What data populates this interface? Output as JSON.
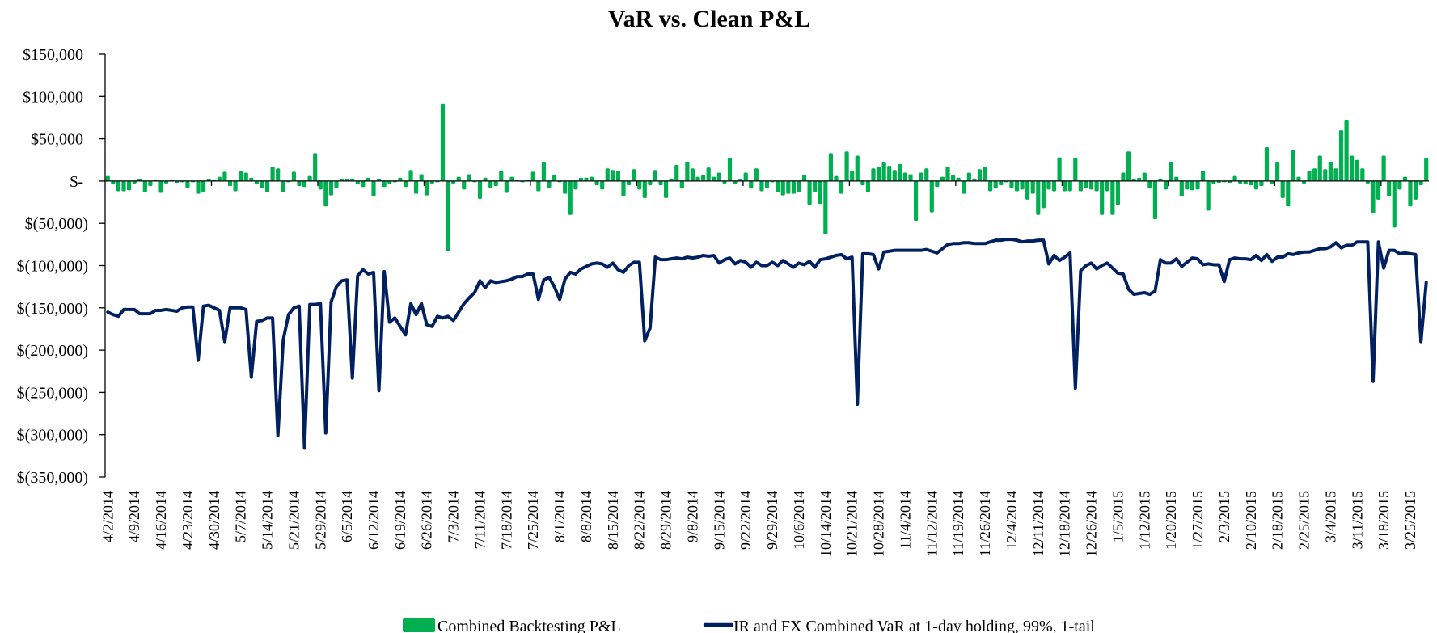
{
  "chart_data": {
    "type": "bar+line",
    "title": "VaR vs. Clean P&L",
    "xlabel": "",
    "ylabel": "",
    "units": "USD",
    "ylim": [
      -350000,
      150000
    ],
    "y_ticks": [
      150000,
      100000,
      50000,
      0,
      -50000,
      -100000,
      -150000,
      -200000,
      -250000,
      -300000,
      -350000
    ],
    "y_tick_labels": [
      "$150,000",
      "$100,000",
      "$50,000",
      "$-",
      "$(50,000)",
      "$(100,000)",
      "$(150,000)",
      "$(200,000)",
      "$(250,000)",
      "$(300,000)",
      "$(350,000)"
    ],
    "x_tick_label_every": 5,
    "x_tick_labels": [
      "4/2/2014",
      "4/9/2014",
      "4/16/2014",
      "4/23/2014",
      "4/30/2014",
      "5/7/2014",
      "5/14/2014",
      "5/21/2014",
      "5/29/2014",
      "6/5/2014",
      "6/12/2014",
      "6/19/2014",
      "6/26/2014",
      "7/3/2014",
      "7/11/2014",
      "7/18/2014",
      "7/25/2014",
      "8/1/2014",
      "8/8/2014",
      "8/15/2014",
      "8/22/2014",
      "8/29/2014",
      "9/8/2014",
      "9/15/2014",
      "9/22/2014",
      "9/29/2014",
      "10/6/2014",
      "10/14/2014",
      "10/21/2014",
      "10/28/2014",
      "11/4/2014",
      "11/12/2014",
      "11/19/2014",
      "11/26/2014",
      "12/4/2014",
      "12/11/2014",
      "12/18/2014",
      "12/26/2014",
      "1/5/2015",
      "1/12/2015",
      "1/20/2015",
      "1/27/2015",
      "2/3/2015",
      "2/10/2015",
      "2/18/2015",
      "2/25/2015",
      "3/4/2015",
      "3/11/2015",
      "3/18/2015",
      "3/25/2015"
    ],
    "grid": false,
    "legend_position": "bottom",
    "series": [
      {
        "name": "Combined Backtesting P&L",
        "type": "bar",
        "color": "#00B050",
        "values": [
          6000,
          -4000,
          -12000,
          -12000,
          -11000,
          -3000,
          2000,
          -13000,
          -6000,
          1000,
          -14000,
          -3000,
          1000,
          -2000,
          -1000,
          -8000,
          -1000,
          -15000,
          -13000,
          2000,
          1000,
          5000,
          11000,
          -6000,
          -12000,
          12000,
          10000,
          4000,
          -4000,
          -8000,
          -13000,
          17000,
          15000,
          -13000,
          0,
          11000,
          -6000,
          -7000,
          6000,
          33000,
          -10000,
          -30000,
          -17000,
          -8000,
          2000,
          2000,
          3000,
          -4000,
          -7000,
          4000,
          -18000,
          2000,
          -7000,
          -3000,
          0,
          4000,
          -7000,
          13000,
          -15000,
          8000,
          -17000,
          -3000,
          0,
          91000,
          -83000,
          -3000,
          5000,
          -10000,
          8000,
          -1000,
          -21000,
          4000,
          -8000,
          -6000,
          12000,
          -14000,
          5000,
          1000,
          0,
          1000,
          11000,
          -12000,
          22000,
          -8000,
          7000,
          -1000,
          -15000,
          -40000,
          -10000,
          4000,
          4000,
          5000,
          -5000,
          -10000,
          15000,
          13000,
          12000,
          -18000,
          -5000,
          14000,
          -10000,
          -20000,
          -5000,
          13000,
          -5000,
          -20000,
          3000,
          19000,
          -9000,
          23000,
          15000,
          5000,
          7000,
          16000,
          5000,
          10000,
          -3000,
          27000,
          -3000,
          2000,
          10000,
          -9000,
          15000,
          -12000,
          -8000,
          0,
          -13000,
          -17000,
          -15000,
          -15000,
          -13000,
          7000,
          -28000,
          -13000,
          -27000,
          -63000,
          33000,
          6000,
          -15000,
          35000,
          12000,
          30000,
          -5000,
          -13000,
          15000,
          17000,
          22000,
          18000,
          13000,
          20000,
          10000,
          8000,
          -47000,
          10000,
          15000,
          -37000,
          -7000,
          5000,
          17000,
          7000,
          4000,
          -15000,
          10000,
          3000,
          14000,
          17000,
          -12000,
          -9000,
          -5000,
          0,
          -8000,
          -12000,
          -10000,
          -22000,
          -15000,
          -40000,
          -32000,
          -10000,
          -12000,
          28000,
          -12000,
          -12000,
          27000,
          -12000,
          -8000,
          -10000,
          -12000,
          -40000,
          -12000,
          -40000,
          -28000,
          10000,
          35000,
          2000,
          4000,
          10000,
          -8000,
          -45000,
          3000,
          -10000,
          22000,
          5000,
          -18000,
          -10000,
          -11000,
          -10000,
          12000,
          -35000,
          -3000,
          -2000,
          0,
          -2000,
          6000,
          -3000,
          -4000,
          -5000,
          -10000,
          -6000,
          40000,
          -3000,
          22000,
          -20000,
          -30000,
          37000,
          5000,
          -3000,
          12000,
          15000,
          30000,
          14000,
          23000,
          15000,
          60000,
          72000,
          30000,
          25000,
          15000,
          -3000,
          -38000,
          -22000,
          30000,
          -18000,
          -55000,
          -10000,
          5000,
          -30000,
          -22000,
          -5000,
          27000
        ]
      },
      {
        "name": "IR and FX Combined VaR at 1-day holding, 99%, 1-tail",
        "type": "line",
        "color": "#002060",
        "values": [
          -155000,
          -158000,
          -160000,
          -152000,
          -152000,
          -152000,
          -157000,
          -157000,
          -157000,
          -153000,
          -153000,
          -152000,
          -153000,
          -154000,
          -150000,
          -149000,
          -149000,
          -212000,
          -148000,
          -147000,
          -150000,
          -153000,
          -190000,
          -150000,
          -150000,
          -150000,
          -152000,
          -232000,
          -166000,
          -165000,
          -162000,
          -162000,
          -301000,
          -188000,
          -158000,
          -150000,
          -148000,
          -316000,
          -146000,
          -146000,
          -145000,
          -298000,
          -143000,
          -125000,
          -118000,
          -117000,
          -233000,
          -112000,
          -105000,
          -110000,
          -108000,
          -248000,
          -107000,
          -167000,
          -162000,
          -172000,
          -182000,
          -145000,
          -158000,
          -145000,
          -170000,
          -172000,
          -160000,
          -162000,
          -160000,
          -165000,
          -155000,
          -145000,
          -138000,
          -132000,
          -118000,
          -126000,
          -118000,
          -120000,
          -119000,
          -118000,
          -116000,
          -113000,
          -113000,
          -110000,
          -110000,
          -140000,
          -117000,
          -114000,
          -125000,
          -140000,
          -116000,
          -108000,
          -110000,
          -104000,
          -101000,
          -98000,
          -97000,
          -98000,
          -102000,
          -97000,
          -105000,
          -108000,
          -100000,
          -96000,
          -96000,
          -189000,
          -174000,
          -90000,
          -93000,
          -93000,
          -92000,
          -91000,
          -92000,
          -90000,
          -91000,
          -90000,
          -88000,
          -89000,
          -88000,
          -97000,
          -93000,
          -91000,
          -98000,
          -94000,
          -96000,
          -102000,
          -96000,
          -100000,
          -100000,
          -96000,
          -100000,
          -94000,
          -98000,
          -102000,
          -97000,
          -99000,
          -95000,
          -102000,
          -93000,
          -92000,
          -90000,
          -88000,
          -87000,
          -92000,
          -90000,
          -264000,
          -86000,
          -86000,
          -87000,
          -104000,
          -84000,
          -83000,
          -82000,
          -82000,
          -82000,
          -82000,
          -82000,
          -82000,
          -81000,
          -83000,
          -85000,
          -80000,
          -75000,
          -74000,
          -74000,
          -73000,
          -73000,
          -74000,
          -74000,
          -74000,
          -72000,
          -70000,
          -70000,
          -69000,
          -69000,
          -70000,
          -72000,
          -71000,
          -71000,
          -70000,
          -70000,
          -98000,
          -88000,
          -94000,
          -90000,
          -85000,
          -245000,
          -106000,
          -100000,
          -97000,
          -104000,
          -100000,
          -97000,
          -103000,
          -109000,
          -110000,
          -128000,
          -134000,
          -133000,
          -132000,
          -134000,
          -130000,
          -93000,
          -97000,
          -97000,
          -92000,
          -101000,
          -96000,
          -91000,
          -92000,
          -99000,
          -98000,
          -99000,
          -99000,
          -119000,
          -93000,
          -91000,
          -92000,
          -92000,
          -93000,
          -88000,
          -94000,
          -87000,
          -95000,
          -90000,
          -90000,
          -86000,
          -87000,
          -85000,
          -84000,
          -84000,
          -82000,
          -80000,
          -80000,
          -78000,
          -73000,
          -79000,
          -76000,
          -76000,
          -72000,
          -72000,
          -72000,
          -237000,
          -72000,
          -103000,
          -82000,
          -82000,
          -86000,
          -85000,
          -86000,
          -87000,
          -190000,
          -120000
        ]
      }
    ]
  }
}
